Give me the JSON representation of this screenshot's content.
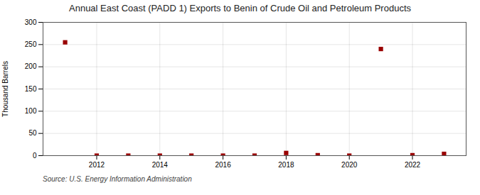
{
  "chart_data": {
    "type": "scatter",
    "title": "Annual East Coast (PADD 1) Exports to Benin of Crude Oil and Petroleum Products",
    "ylabel": "Thousand Barrels",
    "source": "Source: U.S. Energy Information Administration",
    "x": [
      2011,
      2012,
      2013,
      2014,
      2015,
      2016,
      2017,
      2018,
      2019,
      2020,
      2021,
      2022,
      2023
    ],
    "values": [
      255,
      0,
      0,
      0,
      0,
      0,
      0,
      6,
      1,
      0,
      240,
      1,
      4
    ],
    "color": "#990000",
    "marker": "square",
    "xlim": [
      2010.3,
      2023.7
    ],
    "xticks": [
      2012,
      2014,
      2016,
      2018,
      2020,
      2022
    ],
    "ylim": [
      0,
      300
    ],
    "yticks": [
      0,
      50,
      100,
      150,
      200,
      250,
      300
    ],
    "grid": true
  }
}
